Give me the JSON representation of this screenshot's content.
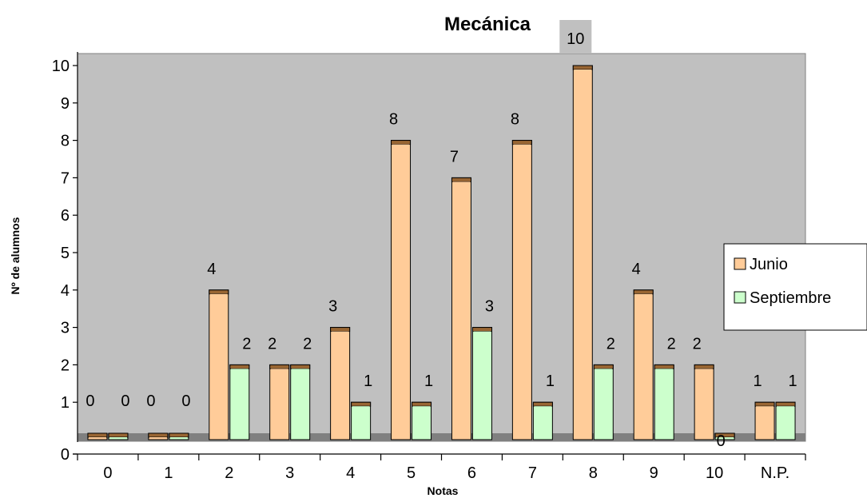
{
  "chart_data": {
    "type": "bar",
    "title": "Mecánica",
    "xlabel": "Notas",
    "ylabel": "Nº de alumnos",
    "categories": [
      "0",
      "1",
      "2",
      "3",
      "4",
      "5",
      "6",
      "7",
      "8",
      "9",
      "10",
      "N.P."
    ],
    "ylim": [
      0,
      10
    ],
    "yticks": [
      "0",
      "1",
      "2",
      "3",
      "4",
      "5",
      "6",
      "7",
      "8",
      "9",
      "10"
    ],
    "grid": false,
    "legend_position": "right",
    "series": [
      {
        "name": "Junio",
        "values": [
          0,
          0,
          4,
          2,
          3,
          8,
          7,
          8,
          10,
          4,
          2,
          1
        ],
        "color": "#FFCC99"
      },
      {
        "name": "Septiembre",
        "values": [
          0,
          0,
          2,
          2,
          1,
          1,
          3,
          1,
          2,
          2,
          0,
          1
        ],
        "color": "#CCFFCC"
      }
    ],
    "data_labels": true
  },
  "colors": {
    "plot_background": "#C0C0C0",
    "floor": "#808080",
    "bar_top": "#996633",
    "axis": "#000000"
  }
}
